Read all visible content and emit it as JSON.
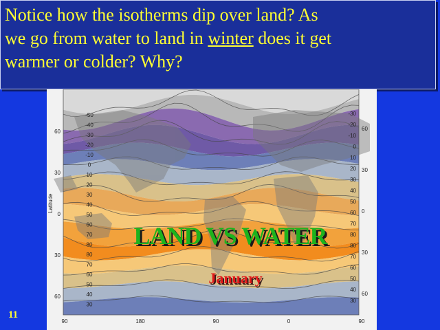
{
  "question": {
    "line1": "Notice how the isotherms dip over land? As",
    "line2_before": "we go from water to land in ",
    "line2_underlined": "winter",
    "line2_after": " does it get",
    "line3": "warmer or colder?  Why?"
  },
  "overlay": {
    "title": "LAND VS WATER",
    "month": "January"
  },
  "slide_number": "11",
  "map": {
    "axis_title": "Latitude",
    "lat_left": [
      "60",
      "30",
      "0",
      "30",
      "60"
    ],
    "lat_right": [
      "60",
      "30",
      "0",
      "30",
      "60"
    ],
    "lon_bottom": [
      "90",
      "180",
      "90",
      "0",
      "90"
    ],
    "isotherm_labels_right": [
      "-30",
      "-20",
      "-10",
      "0",
      "10",
      "20",
      "30",
      "40",
      "50",
      "60",
      "70",
      "80",
      "80",
      "70",
      "60",
      "50",
      "40",
      "30"
    ],
    "isotherm_labels_left": [
      "-50",
      "-40",
      "-30",
      "-20",
      "-10",
      "0",
      "10",
      "20",
      "30",
      "40",
      "50",
      "60",
      "70",
      "80",
      "80",
      "70",
      "60",
      "50",
      "40",
      "30"
    ],
    "band_colors": [
      "#d9d9d9",
      "#b8b8b8",
      "#8a6ab0",
      "#6f5aa6",
      "#6d7fb8",
      "#a9b6c9",
      "#d9c18a",
      "#e8a95a",
      "#f6c878",
      "#f2a23c",
      "#f28c1e",
      "#f6c878",
      "#d9c18a",
      "#a9b6c9",
      "#6d7fb8"
    ]
  }
}
